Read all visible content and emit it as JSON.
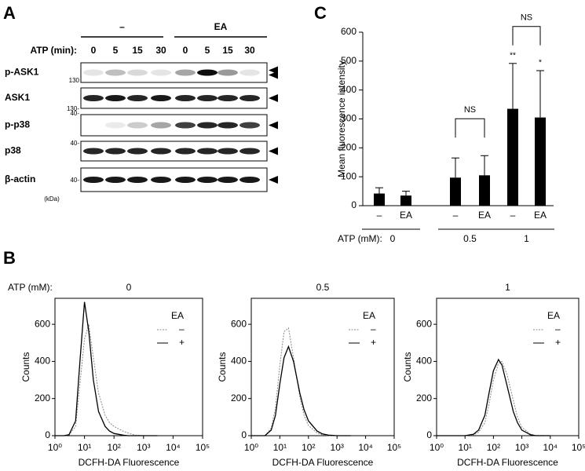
{
  "blot": {
    "panel": "A",
    "treatments": [
      "–",
      "EA"
    ],
    "time_label": "ATP (min):",
    "lanes": [
      "0",
      "5",
      "15",
      "30",
      "0",
      "5",
      "15",
      "30"
    ],
    "rows": [
      {
        "label": "p-ASK1",
        "marker": "130"
      },
      {
        "label": "ASK1",
        "marker": "130-"
      },
      {
        "label": "p-p38",
        "marker": "40-"
      },
      {
        "label": "p38",
        "marker": "40-"
      },
      {
        "label": "β-actin",
        "marker": "40-"
      }
    ],
    "unit": "(kDa)"
  },
  "panel_b": {
    "panel": "B",
    "condition_label": "ATP (mM):"
  },
  "chart_data": [
    {
      "type": "bar",
      "panel": "C",
      "ylabel": "Mean fluorescence intensity",
      "categories": [
        "–",
        "EA",
        "–",
        "EA",
        "–",
        "EA"
      ],
      "values": [
        42,
        35,
        97,
        105,
        335,
        305
      ],
      "errors": [
        20,
        15,
        68,
        68,
        157,
        162
      ],
      "color": "#000000",
      "star_labels": [
        null,
        null,
        null,
        null,
        "**",
        "*"
      ],
      "group_axis_label": "ATP (mM):",
      "group_labels": [
        "0",
        "0.5",
        "1"
      ],
      "bracket_labels": [
        null,
        "NS",
        "NS"
      ],
      "ylim": [
        0,
        600
      ],
      "yticks": [
        0,
        100,
        200,
        300,
        400,
        500,
        600
      ]
    },
    {
      "type": "line",
      "title": "0",
      "xlabel": "DCFH-DA Fluorescence",
      "ylabel": "Counts",
      "xscale": "log",
      "legend_title": "EA",
      "x": [
        1,
        2,
        3,
        5,
        7,
        10,
        14,
        20,
        30,
        50,
        70,
        100,
        200,
        300,
        500,
        1000,
        3000
      ],
      "series": [
        {
          "name": "–",
          "color": "#888888",
          "dash": true,
          "values": [
            0,
            0,
            3,
            50,
            280,
            520,
            600,
            420,
            230,
            110,
            70,
            50,
            25,
            15,
            3,
            0,
            0
          ]
        },
        {
          "name": "+",
          "color": "#000000",
          "dash": false,
          "values": [
            0,
            0,
            5,
            80,
            400,
            720,
            560,
            300,
            130,
            50,
            25,
            12,
            3,
            0,
            0,
            0,
            0
          ]
        }
      ],
      "xlim": [
        1,
        100000
      ],
      "xticks": [
        {
          "value": 1,
          "label": "10⁰"
        },
        {
          "value": 10,
          "label": "10¹"
        },
        {
          "value": 100,
          "label": "10²"
        },
        {
          "value": 1000,
          "label": "10³"
        },
        {
          "value": 10000,
          "label": "10⁴"
        },
        {
          "value": 100000,
          "label": "10⁵"
        }
      ],
      "ylim": [
        0,
        740
      ],
      "yticks": [
        0,
        200,
        400,
        600
      ]
    },
    {
      "type": "line",
      "title": "0.5",
      "xlabel": "DCFH-DA Fluorescence",
      "ylabel": "Counts",
      "xscale": "log",
      "legend_title": "EA",
      "x": [
        1,
        2,
        3,
        5,
        7,
        10,
        14,
        20,
        30,
        50,
        70,
        100,
        200,
        300,
        500,
        1000,
        3000
      ],
      "series": [
        {
          "name": "–",
          "color": "#888888",
          "dash": true,
          "values": [
            0,
            0,
            0,
            40,
            150,
            380,
            560,
            580,
            420,
            210,
            110,
            55,
            15,
            5,
            0,
            0,
            0
          ]
        },
        {
          "name": "+",
          "color": "#000000",
          "dash": false,
          "values": [
            0,
            0,
            0,
            30,
            110,
            280,
            420,
            480,
            400,
            230,
            140,
            80,
            25,
            10,
            3,
            0,
            0
          ]
        }
      ],
      "xlim": [
        1,
        100000
      ],
      "xticks": [
        {
          "value": 1,
          "label": "10⁰"
        },
        {
          "value": 10,
          "label": "10¹"
        },
        {
          "value": 100,
          "label": "10²"
        },
        {
          "value": 1000,
          "label": "10³"
        },
        {
          "value": 10000,
          "label": "10⁴"
        },
        {
          "value": 100000,
          "label": "10⁵"
        }
      ],
      "ylim": [
        0,
        740
      ],
      "yticks": [
        0,
        200,
        400,
        600
      ]
    },
    {
      "type": "line",
      "title": "1",
      "xlabel": "DCFH-DA Fluorescence",
      "ylabel": "Counts",
      "xscale": "log",
      "legend_title": "EA",
      "x": [
        1,
        3,
        10,
        20,
        30,
        50,
        70,
        100,
        150,
        200,
        300,
        500,
        700,
        1000,
        2000,
        3000,
        10000
      ],
      "series": [
        {
          "name": "–",
          "color": "#888888",
          "dash": true,
          "values": [
            0,
            0,
            0,
            4,
            18,
            70,
            170,
            300,
            390,
            400,
            330,
            190,
            100,
            45,
            8,
            2,
            0
          ]
        },
        {
          "name": "+",
          "color": "#000000",
          "dash": false,
          "values": [
            0,
            0,
            0,
            8,
            30,
            110,
            230,
            350,
            410,
            380,
            270,
            130,
            70,
            30,
            5,
            0,
            0
          ]
        }
      ],
      "xlim": [
        1,
        100000
      ],
      "xticks": [
        {
          "value": 1,
          "label": "10⁰"
        },
        {
          "value": 10,
          "label": "10¹"
        },
        {
          "value": 100,
          "label": "10²"
        },
        {
          "value": 1000,
          "label": "10³"
        },
        {
          "value": 10000,
          "label": "10⁴"
        },
        {
          "value": 100000,
          "label": "10⁵"
        }
      ],
      "ylim": [
        0,
        740
      ],
      "yticks": [
        0,
        200,
        400,
        600
      ]
    }
  ]
}
